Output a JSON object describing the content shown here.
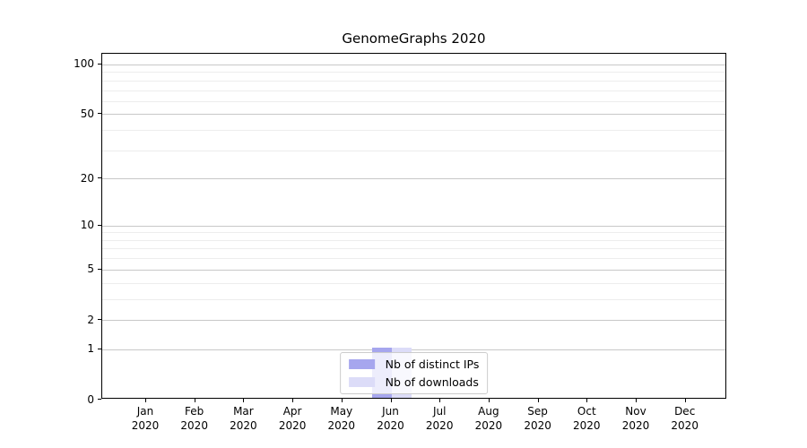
{
  "figure": {
    "title": "GenomeGraphs 2020"
  },
  "chart_data": {
    "type": "bar",
    "title": "GenomeGraphs 2020",
    "categories": [
      "Jan 2020",
      "Feb 2020",
      "Mar 2020",
      "Apr 2020",
      "May 2020",
      "Jun 2020",
      "Jul 2020",
      "Aug 2020",
      "Sep 2020",
      "Oct 2020",
      "Nov 2020",
      "Dec 2020"
    ],
    "series": [
      {
        "name": "Nb of distinct IPs",
        "color": "#a6a6ee",
        "values": [
          0,
          0,
          0,
          0,
          0,
          1,
          0,
          0,
          0,
          0,
          0,
          0
        ]
      },
      {
        "name": "Nb of downloads",
        "color": "#dcdcf8",
        "values": [
          0,
          0,
          0,
          0,
          0,
          1,
          0,
          0,
          0,
          0,
          0,
          0
        ]
      }
    ],
    "xlabel": "",
    "ylabel": "",
    "yscale": "log1p",
    "yticks": [
      0,
      1,
      2,
      5,
      10,
      20,
      50,
      100
    ],
    "yticks_minor": [
      3,
      4,
      6,
      7,
      8,
      9,
      30,
      40,
      60,
      70,
      80,
      90
    ],
    "ylim": [
      0,
      116
    ],
    "grid": true,
    "legend": {
      "position": "lower center"
    }
  }
}
